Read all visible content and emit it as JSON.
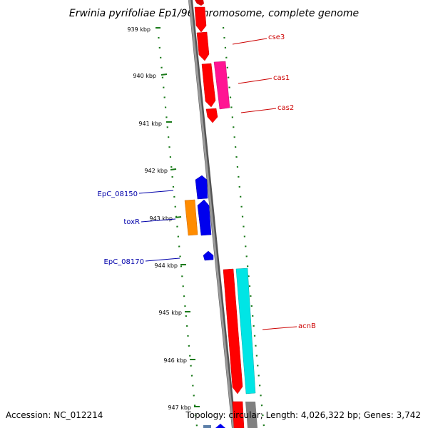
{
  "title": "Erwinia pyrifoliae Ep1/96 chromosome, complete genome",
  "footer": {
    "accession": "Accession: NC_012214",
    "stats": "Topology: circular; Length: 4,026,322 bp; Genes: 3,742"
  },
  "colors": {
    "backbone": "#808080",
    "ticks": "#1a7a1a",
    "red_gene": "#ff0000",
    "magenta_gene": "#ff1493",
    "blue_gene": "#0000ee",
    "orange_gene": "#ff8c00",
    "cyan_gene": "#00e5e5",
    "red_label": "#cc0000",
    "blue_label": "#0000aa"
  },
  "ticks": [
    "939 kbp",
    "940 kbp",
    "941 kbp",
    "942 kbp",
    "943 kbp",
    "944 kbp",
    "945 kbp",
    "946 kbp",
    "947 kbp"
  ],
  "genes": {
    "cse3": "cse3",
    "cas1": "cas1",
    "cas2": "cas2",
    "EpC_08150": "EpC_08150",
    "toxR": "toxR",
    "EpC_08170": "EpC_08170",
    "acnB": "acnB"
  }
}
